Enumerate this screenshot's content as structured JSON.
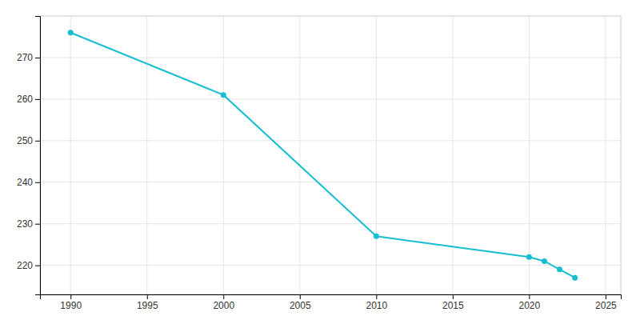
{
  "chart_data": {
    "type": "line",
    "x": [
      1990,
      2000,
      2010,
      2020,
      2021,
      2022,
      2023
    ],
    "values": [
      276,
      261,
      227,
      222,
      221,
      219,
      217
    ],
    "color": "#17becf",
    "marker": "circle",
    "xlim": [
      1988,
      2026
    ],
    "ylim": [
      213,
      280
    ],
    "xticks": [
      1990,
      1995,
      2000,
      2005,
      2010,
      2015,
      2020,
      2025
    ],
    "yticks": [
      220,
      230,
      240,
      250,
      260,
      270
    ],
    "grid": true
  }
}
